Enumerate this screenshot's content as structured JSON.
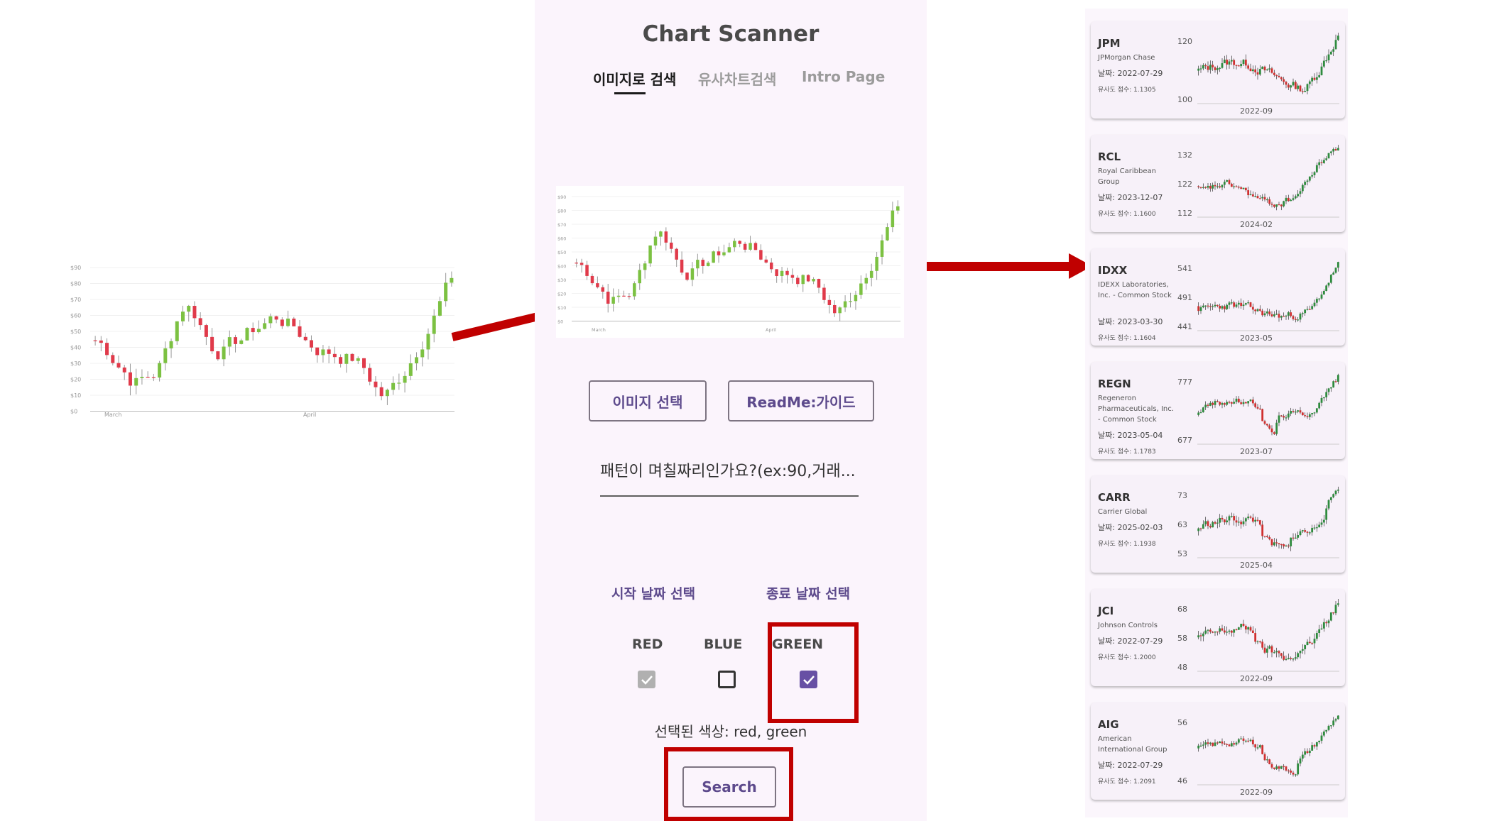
{
  "source_chart": {
    "y_ticks": [
      "$90",
      "$80",
      "$70",
      "$60",
      "$50",
      "$40",
      "$30",
      "$20",
      "$10",
      "$0"
    ],
    "x_ticks": [
      "March",
      "April"
    ]
  },
  "app": {
    "title": "Chart Scanner",
    "tabs": [
      {
        "label": "이미지로 검색",
        "active": true
      },
      {
        "label": "유사차트검색",
        "active": false
      },
      {
        "label": "Intro Page",
        "active": false
      }
    ],
    "select_image_button": "이미지 선택",
    "readme_button": "ReadMe:가이드",
    "pattern_input_placeholder": "패턴이 며칠짜리인가요?(ex:90,거래...",
    "start_date_button": "시작 날짜 선택",
    "end_date_button": "종료 날짜 선택",
    "colors": [
      {
        "label": "RED",
        "checked": true,
        "disabled": true
      },
      {
        "label": "BLUE",
        "checked": false
      },
      {
        "label": "GREEN",
        "checked": true
      }
    ],
    "selected_colors_text": "선택된 색상: red, green",
    "search_button": "Search"
  },
  "results": [
    {
      "ticker": "JPM",
      "name": "JPMorgan Chase",
      "date": "날짜: 2022-07-29",
      "score": "유사도 점수: 1.1305",
      "y_ticks": [
        "120",
        "100"
      ],
      "x_tick": "2022-09"
    },
    {
      "ticker": "RCL",
      "name": "Royal Caribbean Group",
      "date": "날짜: 2023-12-07",
      "score": "유사도 점수: 1.1600",
      "y_ticks": [
        "132",
        "122",
        "112"
      ],
      "x_tick": "2024-02"
    },
    {
      "ticker": "IDXX",
      "name": "IDEXX Laboratories, Inc. - Common Stock",
      "date": "날짜: 2023-03-30",
      "score": "유사도 점수: 1.1604",
      "y_ticks": [
        "541",
        "491",
        "441"
      ],
      "x_tick": "2023-05"
    },
    {
      "ticker": "REGN",
      "name": "Regeneron Pharmaceuticals, Inc. - Common Stock",
      "date": "날짜: 2023-05-04",
      "score": "유사도 점수: 1.1783",
      "y_ticks": [
        "777",
        "677"
      ],
      "x_tick": "2023-07"
    },
    {
      "ticker": "CARR",
      "name": "Carrier Global",
      "date": "날짜: 2025-02-03",
      "score": "유사도 점수: 1.1938",
      "y_ticks": [
        "73",
        "63",
        "53"
      ],
      "x_tick": "2025-04"
    },
    {
      "ticker": "JCI",
      "name": "Johnson Controls",
      "date": "날짜: 2022-07-29",
      "score": "유사도 점수: 1.2000",
      "y_ticks": [
        "68",
        "58",
        "48"
      ],
      "x_tick": "2022-09"
    },
    {
      "ticker": "AIG",
      "name": "American International Group",
      "date": "날짜: 2022-07-29",
      "score": "유사도 점수: 1.2091",
      "y_ticks": [
        "56",
        "46"
      ],
      "x_tick": "2022-09"
    }
  ],
  "colors": {
    "accent": "#6750a4",
    "highlight": "#c00000",
    "candle_up": "#7cc142",
    "candle_down": "#e03a4a",
    "candle_up_dark": "#2e8b3e",
    "candle_down_dark": "#d03030"
  }
}
